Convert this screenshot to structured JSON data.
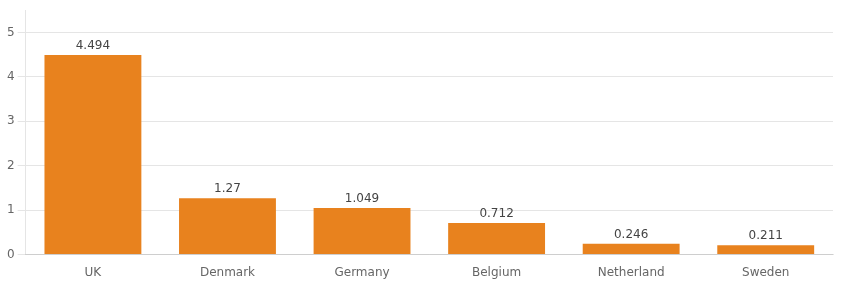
{
  "chart_data": {
    "type": "bar",
    "categories": [
      "UK",
      "Denmark",
      "Germany",
      "Belgium",
      "Netherland",
      "Sweden"
    ],
    "values": [
      4.494,
      1.27,
      1.049,
      0.712,
      0.246,
      0.211
    ],
    "color": "#E8821E",
    "ylim": [
      0,
      5.5
    ],
    "yticks": [
      0,
      1,
      2,
      3,
      4,
      5
    ],
    "grid": true,
    "data_labels": true
  }
}
